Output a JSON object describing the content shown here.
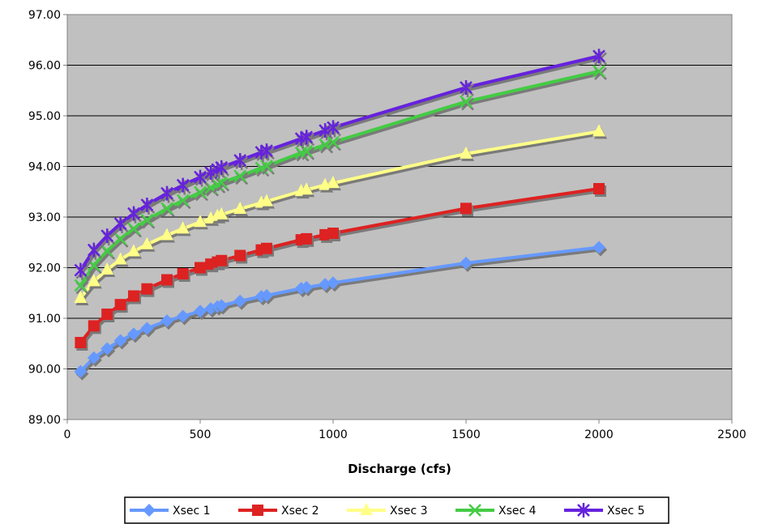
{
  "chart_data": {
    "type": "line",
    "title": "",
    "xlabel": "Discharge (cfs)",
    "ylabel": "",
    "xlim": [
      0,
      2500
    ],
    "ylim": [
      89,
      97
    ],
    "x_ticks": [
      "0",
      "500",
      "1000",
      "1500",
      "2000",
      "2500"
    ],
    "y_ticks": [
      "89.00",
      "90.00",
      "91.00",
      "92.00",
      "93.00",
      "94.00",
      "95.00",
      "96.00",
      "97.00"
    ],
    "grid": "horizontal",
    "plot_background": "#c0c0c0",
    "legend_position": "bottom",
    "x": [
      50,
      100,
      150,
      200,
      250,
      300,
      375,
      435,
      500,
      540,
      565,
      580,
      650,
      730,
      750,
      880,
      900,
      970,
      1000,
      1500,
      2000
    ],
    "series": [
      {
        "name": "Xsec 1",
        "color": "#6699ff",
        "marker": "diamond",
        "values": [
          89.95,
          90.22,
          90.4,
          90.56,
          90.69,
          90.8,
          90.95,
          91.04,
          91.14,
          91.19,
          91.23,
          91.25,
          91.34,
          91.43,
          91.45,
          91.59,
          91.61,
          91.67,
          91.7,
          92.09,
          92.4
        ]
      },
      {
        "name": "Xsec 2",
        "color": "#dd2222",
        "marker": "square",
        "values": [
          90.52,
          90.85,
          91.08,
          91.27,
          91.44,
          91.58,
          91.76,
          91.88,
          92.0,
          92.07,
          92.11,
          92.14,
          92.24,
          92.35,
          92.38,
          92.55,
          92.57,
          92.65,
          92.68,
          93.17,
          93.56
        ]
      },
      {
        "name": "Xsec 3",
        "color": "#ffff88",
        "marker": "triangle",
        "values": [
          91.4,
          91.73,
          91.96,
          92.16,
          92.32,
          92.46,
          92.64,
          92.77,
          92.9,
          92.97,
          93.02,
          93.05,
          93.16,
          93.28,
          93.31,
          93.51,
          93.54,
          93.63,
          93.67,
          94.25,
          94.69
        ]
      },
      {
        "name": "Xsec 4",
        "color": "#44cc44",
        "marker": "x",
        "values": [
          91.65,
          92.05,
          92.33,
          92.57,
          92.77,
          92.94,
          93.17,
          93.33,
          93.49,
          93.58,
          93.64,
          93.68,
          93.81,
          93.97,
          94.01,
          94.27,
          94.3,
          94.43,
          94.48,
          95.28,
          95.88
        ]
      },
      {
        "name": "Xsec 5",
        "color": "#6622dd",
        "marker": "star",
        "values": [
          91.95,
          92.35,
          92.63,
          92.87,
          93.07,
          93.24,
          93.47,
          93.63,
          93.79,
          93.88,
          93.94,
          93.98,
          94.12,
          94.28,
          94.31,
          94.55,
          94.58,
          94.71,
          94.77,
          95.56,
          96.18
        ]
      }
    ]
  }
}
